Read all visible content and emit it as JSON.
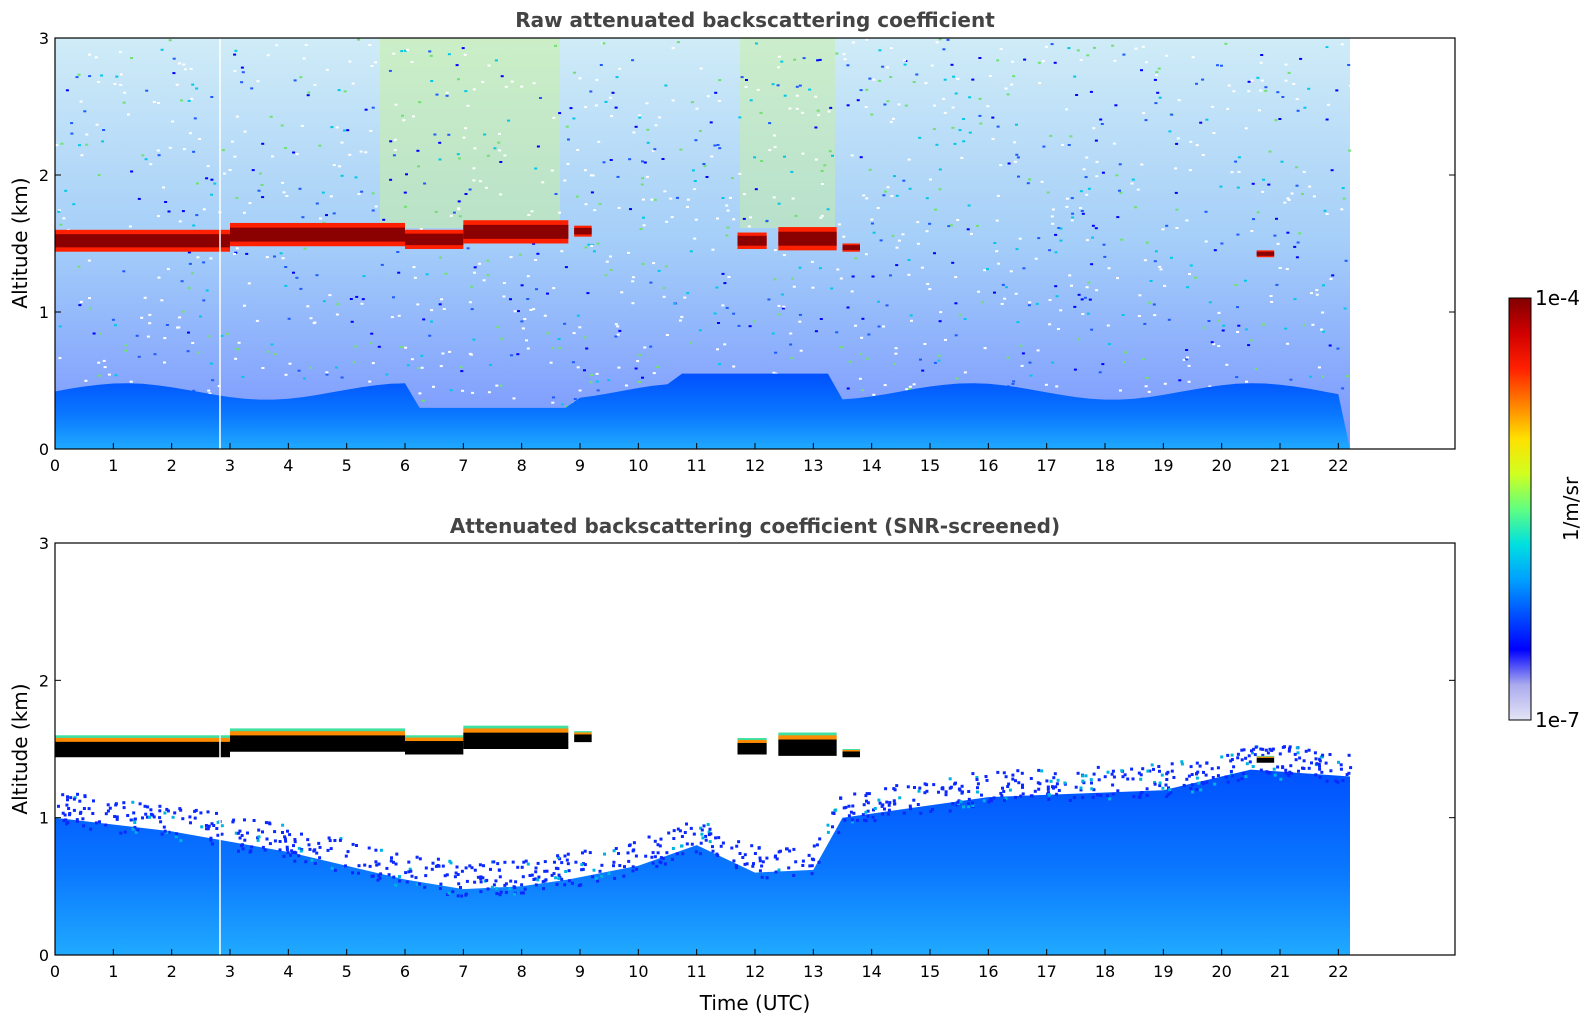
{
  "figure": {
    "colorbar": {
      "label": "1/m/sr",
      "max_label": "1e-4",
      "min_label": "1e-7",
      "scale": "log",
      "colormap": "jet",
      "stops": [
        "#e4e4f6",
        "#aaaaee",
        "#0000ff",
        "#0050ff",
        "#00a0ff",
        "#00e0e0",
        "#60ff80",
        "#d0ff20",
        "#ffe000",
        "#ff8000",
        "#ff2000",
        "#d00000",
        "#800000"
      ]
    }
  },
  "chart_data": [
    {
      "type": "heatmap",
      "title": "Raw attenuated backscattering coefficient",
      "xlabel": "",
      "ylabel": "Altitude (km)",
      "xlim": [
        0,
        24
      ],
      "ylim": [
        0,
        3
      ],
      "x_ticks": [
        "0",
        "1",
        "2",
        "3",
        "4",
        "5",
        "6",
        "7",
        "8",
        "9",
        "10",
        "11",
        "12",
        "13",
        "14",
        "15",
        "16",
        "17",
        "18",
        "19",
        "20",
        "21",
        "22"
      ],
      "y_ticks": [
        "0",
        "1",
        "2",
        "3"
      ],
      "data_end_time": 22.2,
      "cloud_layer": [
        {
          "t_start": 0.0,
          "t_end": 3.0,
          "base_km": 1.44,
          "top_km": 1.6
        },
        {
          "t_start": 3.0,
          "t_end": 6.0,
          "base_km": 1.48,
          "top_km": 1.65
        },
        {
          "t_start": 6.0,
          "t_end": 7.0,
          "base_km": 1.46,
          "top_km": 1.6
        },
        {
          "t_start": 7.0,
          "t_end": 8.8,
          "base_km": 1.5,
          "top_km": 1.67
        },
        {
          "t_start": 8.9,
          "t_end": 9.2,
          "base_km": 1.55,
          "top_km": 1.63
        },
        {
          "t_start": 11.7,
          "t_end": 12.2,
          "base_km": 1.46,
          "top_km": 1.58
        },
        {
          "t_start": 12.4,
          "t_end": 13.4,
          "base_km": 1.45,
          "top_km": 1.62
        },
        {
          "t_start": 13.5,
          "t_end": 13.8,
          "base_km": 1.44,
          "top_km": 1.5
        },
        {
          "t_start": 20.6,
          "t_end": 20.9,
          "base_km": 1.4,
          "top_km": 1.45
        }
      ]
    },
    {
      "type": "heatmap",
      "title": "Attenuated backscattering coefficient (SNR-screened)",
      "xlabel": "Time (UTC)",
      "ylabel": "Altitude (km)",
      "xlim": [
        0,
        24
      ],
      "ylim": [
        0,
        3
      ],
      "x_ticks": [
        "0",
        "1",
        "2",
        "3",
        "4",
        "5",
        "6",
        "7",
        "8",
        "9",
        "10",
        "11",
        "12",
        "13",
        "14",
        "15",
        "16",
        "17",
        "18",
        "19",
        "20",
        "21",
        "22"
      ],
      "y_ticks": [
        "0",
        "1",
        "2",
        "3"
      ],
      "data_end_time": 22.2,
      "aerosol_top_km": [
        {
          "t": 0,
          "h": 1.0
        },
        {
          "t": 2,
          "h": 0.9
        },
        {
          "t": 4,
          "h": 0.75
        },
        {
          "t": 6,
          "h": 0.55
        },
        {
          "t": 7,
          "h": 0.48
        },
        {
          "t": 8,
          "h": 0.5
        },
        {
          "t": 8.8,
          "h": 0.55
        },
        {
          "t": 10,
          "h": 0.65
        },
        {
          "t": 11,
          "h": 0.8
        },
        {
          "t": 12,
          "h": 0.6
        },
        {
          "t": 13,
          "h": 0.62
        },
        {
          "t": 13.5,
          "h": 1.0
        },
        {
          "t": 16,
          "h": 1.15
        },
        {
          "t": 19,
          "h": 1.2
        },
        {
          "t": 20.5,
          "h": 1.35
        },
        {
          "t": 22.2,
          "h": 1.3
        }
      ]
    }
  ]
}
